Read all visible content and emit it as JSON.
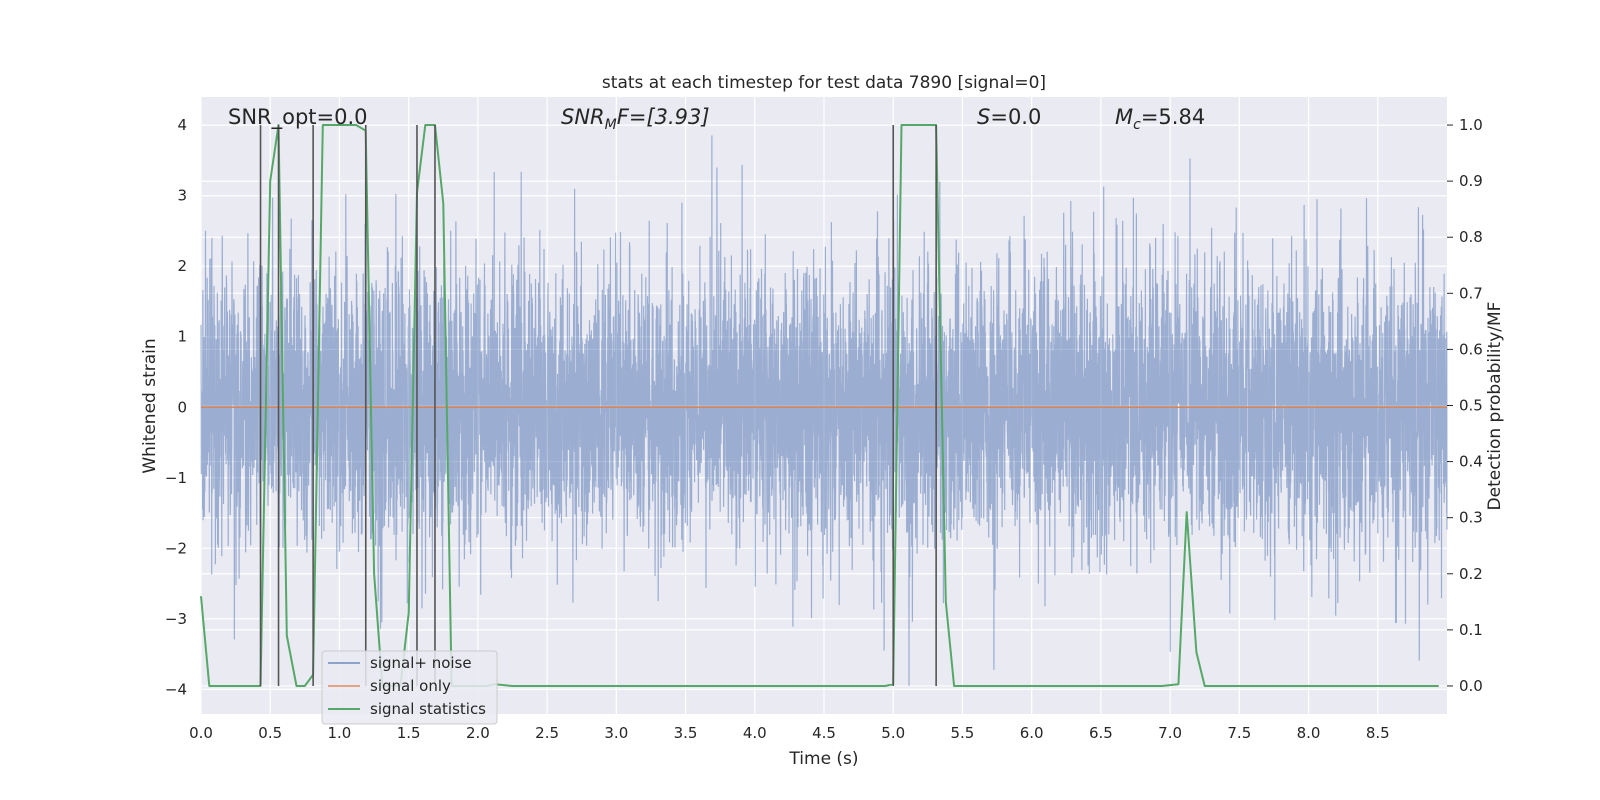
{
  "chart_data": {
    "type": "line",
    "title": "stats at each timestep for test data 7890 [signal=0]",
    "xlabel": "Time (s)",
    "ylabel_left": "Whitened strain",
    "ylabel_right": "Detection probability/MF",
    "xlim": [
      0,
      9
    ],
    "ylim_left": [
      -4.35,
      4.4
    ],
    "ylim_right": [
      -0.05,
      1.05
    ],
    "x_ticks": [
      0.0,
      0.5,
      1.0,
      1.5,
      2.0,
      2.5,
      3.0,
      3.5,
      4.0,
      4.5,
      5.0,
      5.5,
      6.0,
      6.5,
      7.0,
      7.5,
      8.0,
      8.5
    ],
    "x_tick_labels": [
      "0.0",
      "0.5",
      "1.0",
      "1.5",
      "2.0",
      "2.5",
      "3.0",
      "3.5",
      "4.0",
      "4.5",
      "5.0",
      "5.5",
      "6.0",
      "6.5",
      "7.0",
      "7.5",
      "8.0",
      "8.5"
    ],
    "y_left_ticks": [
      -4,
      -3,
      -2,
      -1,
      0,
      1,
      2,
      3,
      4
    ],
    "y_left_tick_labels": [
      "−4",
      "−3",
      "−2",
      "−1",
      "0",
      "1",
      "2",
      "3",
      "4"
    ],
    "y_right_ticks": [
      0.0,
      0.1,
      0.2,
      0.3,
      0.4,
      0.5,
      0.6,
      0.7,
      0.8,
      0.9,
      1.0
    ],
    "y_right_tick_labels": [
      "0.0",
      "0.1",
      "0.2",
      "0.3",
      "0.4",
      "0.5",
      "0.6",
      "0.7",
      "0.8",
      "0.9",
      "1.0"
    ],
    "grid": true,
    "legend_position": "lower-left",
    "annotations": [
      {
        "text": "SNR_opt=0.0",
        "x": 0.2,
        "y": 4.05,
        "style": "normal"
      },
      {
        "text_main": "SNR",
        "text_sub": "M",
        "text_tail": "F=[3.93]",
        "x": 2.6,
        "y": 4.05,
        "style": "italic"
      },
      {
        "text_main": "S",
        "text_tail": "=0.0",
        "x": 5.6,
        "y": 4.05,
        "style": "italic"
      },
      {
        "text_main": "M",
        "text_sub": "c",
        "text_tail": "=5.84",
        "x": 6.6,
        "y": 4.05,
        "style": "italic"
      }
    ],
    "series": [
      {
        "name": "signal+ noise",
        "color": "#4c72b0",
        "axis": "left",
        "kind": "noise",
        "sample_rate": 800,
        "typical_amplitude": 1.6,
        "peak_amplitude": 4.0
      },
      {
        "name": "signal only",
        "color": "#dd8452",
        "axis": "left",
        "x": [
          0,
          9
        ],
        "y": [
          0,
          0
        ]
      },
      {
        "name": "signal statistics",
        "color": "#55a868",
        "axis": "right",
        "x": [
          0.0,
          0.06,
          0.12,
          0.25,
          0.38,
          0.43,
          0.5,
          0.56,
          0.62,
          0.69,
          0.75,
          0.81,
          0.88,
          0.94,
          1.0,
          1.06,
          1.12,
          1.19,
          1.25,
          1.31,
          1.38,
          1.44,
          1.5,
          1.56,
          1.62,
          1.69,
          1.75,
          1.81,
          1.88,
          1.94,
          2.0,
          2.06,
          2.12,
          2.25,
          2.5,
          3.0,
          3.5,
          4.0,
          4.5,
          4.94,
          5.0,
          5.06,
          5.12,
          5.19,
          5.25,
          5.31,
          5.38,
          5.44,
          5.5,
          6.0,
          6.5,
          6.94,
          7.06,
          7.12,
          7.19,
          7.25,
          7.5,
          8.0,
          8.5,
          8.94
        ],
        "y": [
          0.16,
          0.0,
          0.0,
          0.0,
          0.0,
          0.0,
          0.9,
          1.0,
          0.09,
          0.0,
          0.0,
          0.02,
          1.0,
          1.0,
          1.0,
          1.0,
          1.0,
          0.99,
          0.2,
          0.0,
          0.0,
          0.0,
          0.13,
          0.88,
          1.0,
          1.0,
          0.86,
          0.0,
          0.0,
          0.0,
          0.0,
          0.0,
          0.003,
          0.0,
          0.0,
          0.0,
          0.0,
          0.0,
          0.0,
          0.0,
          0.003,
          1.0,
          1.0,
          1.0,
          1.0,
          1.0,
          0.15,
          0.0,
          0.0,
          0.0,
          0.0,
          0.0,
          0.003,
          0.31,
          0.06,
          0.0,
          0.0,
          0.0,
          0.0,
          0.0
        ]
      }
    ],
    "vertical_markers": {
      "color": "#555555",
      "axis": "right",
      "x": [
        0.43,
        0.56,
        0.81,
        1.19,
        1.56,
        1.69,
        5.0,
        5.31
      ],
      "y_low": 0.0,
      "y_high": 1.0
    }
  }
}
